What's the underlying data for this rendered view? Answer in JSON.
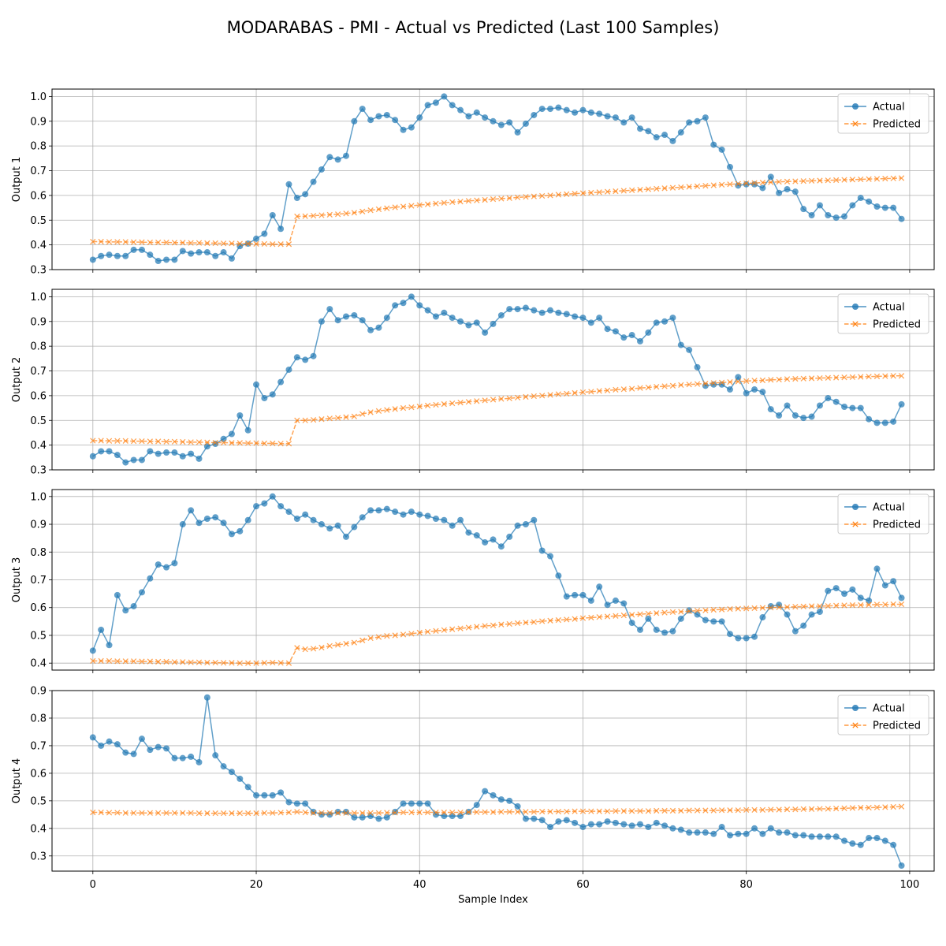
{
  "chart_data": {
    "type": "line",
    "title": "MODARABAS - PMI - Actual vs Predicted (Last 100 Samples)",
    "xlabel": "Sample Index",
    "xlim": [
      -5,
      103
    ],
    "xticks": [
      0,
      20,
      40,
      60,
      80,
      100
    ],
    "grid": true,
    "legend_position": "upper right",
    "colors": {
      "actual": "#1f77b4",
      "predicted": "#ff7f0e"
    },
    "subplots": [
      {
        "ylabel": "Output 1",
        "ylim": [
          0.3,
          1.03
        ],
        "yticks": [
          0.3,
          0.4,
          0.5,
          0.6,
          0.7,
          0.8,
          0.9,
          1.0
        ],
        "series": [
          {
            "name": "Actual",
            "marker": "circle",
            "style": "solid",
            "values": [
              0.34,
              0.355,
              0.36,
              0.355,
              0.355,
              0.38,
              0.38,
              0.36,
              0.335,
              0.34,
              0.34,
              0.375,
              0.365,
              0.37,
              0.37,
              0.355,
              0.37,
              0.345,
              0.395,
              0.405,
              0.425,
              0.445,
              0.52,
              0.465,
              0.645,
              0.59,
              0.605,
              0.655,
              0.705,
              0.755,
              0.745,
              0.76,
              0.9,
              0.95,
              0.905,
              0.92,
              0.925,
              0.905,
              0.865,
              0.875,
              0.915,
              0.965,
              0.975,
              1.0,
              0.965,
              0.945,
              0.92,
              0.935,
              0.915,
              0.9,
              0.885,
              0.895,
              0.855,
              0.89,
              0.925,
              0.95,
              0.95,
              0.955,
              0.945,
              0.935,
              0.945,
              0.935,
              0.93,
              0.92,
              0.915,
              0.895,
              0.915,
              0.87,
              0.86,
              0.835,
              0.845,
              0.82,
              0.855,
              0.895,
              0.9,
              0.915,
              0.805,
              0.785,
              0.715,
              0.64,
              0.645,
              0.645,
              0.63,
              0.675,
              0.61,
              0.625,
              0.615,
              0.545,
              0.52,
              0.56,
              0.52,
              0.51,
              0.515,
              0.56,
              0.59,
              0.575,
              0.555,
              0.55,
              0.55,
              0.505
            ]
          },
          {
            "name": "Predicted",
            "marker": "x",
            "style": "dashed",
            "values": [
              0.413,
              0.413,
              0.412,
              0.412,
              0.412,
              0.411,
              0.411,
              0.41,
              0.41,
              0.41,
              0.409,
              0.409,
              0.408,
              0.408,
              0.407,
              0.407,
              0.406,
              0.406,
              0.405,
              0.405,
              0.404,
              0.404,
              0.403,
              0.403,
              0.403,
              0.515,
              0.516,
              0.518,
              0.52,
              0.522,
              0.524,
              0.527,
              0.53,
              0.535,
              0.54,
              0.544,
              0.548,
              0.552,
              0.555,
              0.558,
              0.561,
              0.564,
              0.567,
              0.57,
              0.573,
              0.575,
              0.578,
              0.58,
              0.582,
              0.585,
              0.587,
              0.589,
              0.592,
              0.594,
              0.596,
              0.598,
              0.6,
              0.603,
              0.605,
              0.607,
              0.609,
              0.611,
              0.613,
              0.615,
              0.617,
              0.619,
              0.621,
              0.623,
              0.625,
              0.627,
              0.629,
              0.631,
              0.633,
              0.635,
              0.637,
              0.639,
              0.641,
              0.643,
              0.645,
              0.647,
              0.649,
              0.65,
              0.652,
              0.653,
              0.655,
              0.656,
              0.657,
              0.658,
              0.659,
              0.66,
              0.661,
              0.662,
              0.663,
              0.664,
              0.665,
              0.666,
              0.667,
              0.668,
              0.669,
              0.67
            ]
          }
        ]
      },
      {
        "ylabel": "Output 2",
        "ylim": [
          0.3,
          1.03
        ],
        "yticks": [
          0.3,
          0.4,
          0.5,
          0.6,
          0.7,
          0.8,
          0.9,
          1.0
        ],
        "series": [
          {
            "name": "Actual",
            "marker": "circle",
            "style": "solid",
            "values": [
              0.355,
              0.375,
              0.375,
              0.36,
              0.33,
              0.34,
              0.34,
              0.375,
              0.365,
              0.37,
              0.37,
              0.355,
              0.365,
              0.345,
              0.395,
              0.405,
              0.425,
              0.445,
              0.52,
              0.46,
              0.645,
              0.59,
              0.605,
              0.655,
              0.705,
              0.755,
              0.745,
              0.76,
              0.9,
              0.95,
              0.905,
              0.92,
              0.925,
              0.905,
              0.865,
              0.875,
              0.915,
              0.965,
              0.975,
              1.0,
              0.965,
              0.945,
              0.92,
              0.935,
              0.915,
              0.9,
              0.885,
              0.895,
              0.855,
              0.89,
              0.925,
              0.95,
              0.95,
              0.955,
              0.945,
              0.935,
              0.945,
              0.935,
              0.93,
              0.92,
              0.915,
              0.895,
              0.915,
              0.87,
              0.86,
              0.835,
              0.845,
              0.82,
              0.855,
              0.895,
              0.9,
              0.915,
              0.805,
              0.785,
              0.715,
              0.64,
              0.645,
              0.645,
              0.625,
              0.675,
              0.61,
              0.625,
              0.615,
              0.545,
              0.52,
              0.56,
              0.52,
              0.51,
              0.515,
              0.56,
              0.59,
              0.575,
              0.555,
              0.55,
              0.55,
              0.505,
              0.49,
              0.49,
              0.495,
              0.565
            ]
          },
          {
            "name": "Predicted",
            "marker": "x",
            "style": "dashed",
            "values": [
              0.418,
              0.418,
              0.417,
              0.417,
              0.417,
              0.416,
              0.416,
              0.415,
              0.415,
              0.414,
              0.414,
              0.413,
              0.412,
              0.412,
              0.411,
              0.41,
              0.41,
              0.409,
              0.409,
              0.408,
              0.408,
              0.407,
              0.407,
              0.406,
              0.406,
              0.5,
              0.5,
              0.502,
              0.505,
              0.508,
              0.51,
              0.513,
              0.516,
              0.526,
              0.533,
              0.538,
              0.542,
              0.546,
              0.55,
              0.553,
              0.556,
              0.56,
              0.563,
              0.566,
              0.569,
              0.572,
              0.575,
              0.578,
              0.581,
              0.584,
              0.587,
              0.589,
              0.592,
              0.595,
              0.598,
              0.6,
              0.603,
              0.606,
              0.608,
              0.611,
              0.614,
              0.616,
              0.619,
              0.621,
              0.624,
              0.626,
              0.628,
              0.631,
              0.633,
              0.636,
              0.638,
              0.64,
              0.643,
              0.645,
              0.647,
              0.649,
              0.651,
              0.653,
              0.655,
              0.657,
              0.659,
              0.661,
              0.662,
              0.664,
              0.665,
              0.667,
              0.668,
              0.669,
              0.67,
              0.671,
              0.672,
              0.673,
              0.674,
              0.675,
              0.676,
              0.677,
              0.678,
              0.679,
              0.68,
              0.68
            ]
          }
        ]
      },
      {
        "ylabel": "Output 3",
        "ylim": [
          0.375,
          1.025
        ],
        "yticks": [
          0.4,
          0.5,
          0.6,
          0.7,
          0.8,
          0.9,
          1.0
        ],
        "series": [
          {
            "name": "Actual",
            "marker": "circle",
            "style": "solid",
            "values": [
              0.445,
              0.52,
              0.465,
              0.645,
              0.59,
              0.605,
              0.655,
              0.705,
              0.755,
              0.745,
              0.76,
              0.9,
              0.95,
              0.905,
              0.92,
              0.925,
              0.905,
              0.865,
              0.875,
              0.915,
              0.965,
              0.975,
              1.0,
              0.965,
              0.945,
              0.92,
              0.935,
              0.915,
              0.9,
              0.885,
              0.895,
              0.855,
              0.89,
              0.925,
              0.95,
              0.95,
              0.955,
              0.945,
              0.935,
              0.945,
              0.935,
              0.93,
              0.92,
              0.915,
              0.895,
              0.915,
              0.87,
              0.86,
              0.835,
              0.845,
              0.82,
              0.855,
              0.895,
              0.9,
              0.915,
              0.805,
              0.785,
              0.715,
              0.64,
              0.645,
              0.645,
              0.625,
              0.675,
              0.61,
              0.625,
              0.615,
              0.545,
              0.52,
              0.56,
              0.52,
              0.51,
              0.515,
              0.56,
              0.59,
              0.575,
              0.555,
              0.55,
              0.55,
              0.505,
              0.49,
              0.49,
              0.495,
              0.565,
              0.605,
              0.61,
              0.575,
              0.515,
              0.535,
              0.575,
              0.585,
              0.66,
              0.67,
              0.65,
              0.665,
              0.635,
              0.625,
              0.74,
              0.68,
              0.695,
              0.635
            ]
          },
          {
            "name": "Predicted",
            "marker": "x",
            "style": "dashed",
            "values": [
              0.408,
              0.408,
              0.408,
              0.407,
              0.407,
              0.407,
              0.406,
              0.406,
              0.405,
              0.405,
              0.404,
              0.404,
              0.403,
              0.403,
              0.402,
              0.402,
              0.401,
              0.401,
              0.4,
              0.4,
              0.4,
              0.401,
              0.402,
              0.401,
              0.4,
              0.455,
              0.45,
              0.452,
              0.456,
              0.462,
              0.466,
              0.47,
              0.474,
              0.482,
              0.49,
              0.494,
              0.498,
              0.5,
              0.503,
              0.506,
              0.51,
              0.513,
              0.516,
              0.519,
              0.522,
              0.525,
              0.528,
              0.531,
              0.534,
              0.536,
              0.539,
              0.541,
              0.544,
              0.546,
              0.548,
              0.551,
              0.553,
              0.555,
              0.557,
              0.559,
              0.562,
              0.564,
              0.566,
              0.568,
              0.57,
              0.572,
              0.574,
              0.576,
              0.578,
              0.58,
              0.582,
              0.584,
              0.585,
              0.587,
              0.589,
              0.59,
              0.592,
              0.593,
              0.595,
              0.596,
              0.597,
              0.598,
              0.599,
              0.6,
              0.601,
              0.602,
              0.603,
              0.604,
              0.605,
              0.605,
              0.606,
              0.607,
              0.608,
              0.609,
              0.609,
              0.61,
              0.611,
              0.611,
              0.612,
              0.612
            ]
          }
        ]
      },
      {
        "ylabel": "Output 4",
        "ylim": [
          0.245,
          0.9
        ],
        "yticks": [
          0.3,
          0.4,
          0.5,
          0.6,
          0.7,
          0.8,
          0.9
        ],
        "series": [
          {
            "name": "Actual",
            "marker": "circle",
            "style": "solid",
            "values": [
              0.73,
              0.7,
              0.715,
              0.705,
              0.675,
              0.67,
              0.725,
              0.685,
              0.695,
              0.69,
              0.655,
              0.655,
              0.66,
              0.64,
              0.875,
              0.665,
              0.625,
              0.605,
              0.58,
              0.55,
              0.52,
              0.52,
              0.52,
              0.53,
              0.495,
              0.49,
              0.49,
              0.46,
              0.45,
              0.45,
              0.46,
              0.46,
              0.44,
              0.44,
              0.445,
              0.435,
              0.44,
              0.46,
              0.49,
              0.49,
              0.49,
              0.49,
              0.45,
              0.445,
              0.445,
              0.445,
              0.46,
              0.485,
              0.535,
              0.52,
              0.505,
              0.5,
              0.48,
              0.435,
              0.435,
              0.43,
              0.405,
              0.425,
              0.43,
              0.42,
              0.405,
              0.415,
              0.415,
              0.425,
              0.42,
              0.415,
              0.41,
              0.415,
              0.405,
              0.42,
              0.41,
              0.4,
              0.395,
              0.385,
              0.385,
              0.385,
              0.38,
              0.405,
              0.375,
              0.38,
              0.38,
              0.4,
              0.38,
              0.4,
              0.385,
              0.385,
              0.375,
              0.375,
              0.37,
              0.37,
              0.37,
              0.37,
              0.355,
              0.345,
              0.34,
              0.365,
              0.365,
              0.355,
              0.34,
              0.265
            ]
          },
          {
            "name": "Predicted",
            "marker": "x",
            "style": "dashed",
            "values": [
              0.458,
              0.458,
              0.457,
              0.457,
              0.456,
              0.456,
              0.456,
              0.456,
              0.456,
              0.456,
              0.456,
              0.456,
              0.456,
              0.455,
              0.455,
              0.455,
              0.455,
              0.455,
              0.455,
              0.455,
              0.455,
              0.456,
              0.456,
              0.457,
              0.458,
              0.46,
              0.458,
              0.456,
              0.456,
              0.456,
              0.456,
              0.456,
              0.456,
              0.456,
              0.456,
              0.456,
              0.457,
              0.457,
              0.458,
              0.458,
              0.458,
              0.458,
              0.458,
              0.458,
              0.458,
              0.458,
              0.459,
              0.459,
              0.459,
              0.459,
              0.46,
              0.46,
              0.46,
              0.46,
              0.46,
              0.461,
              0.461,
              0.461,
              0.461,
              0.462,
              0.462,
              0.462,
              0.462,
              0.462,
              0.463,
              0.463,
              0.463,
              0.463,
              0.463,
              0.464,
              0.464,
              0.464,
              0.464,
              0.465,
              0.465,
              0.465,
              0.465,
              0.466,
              0.466,
              0.466,
              0.467,
              0.467,
              0.467,
              0.468,
              0.468,
              0.469,
              0.469,
              0.47,
              0.47,
              0.471,
              0.471,
              0.472,
              0.473,
              0.474,
              0.475,
              0.475,
              0.476,
              0.477,
              0.478,
              0.479
            ]
          }
        ]
      }
    ]
  }
}
